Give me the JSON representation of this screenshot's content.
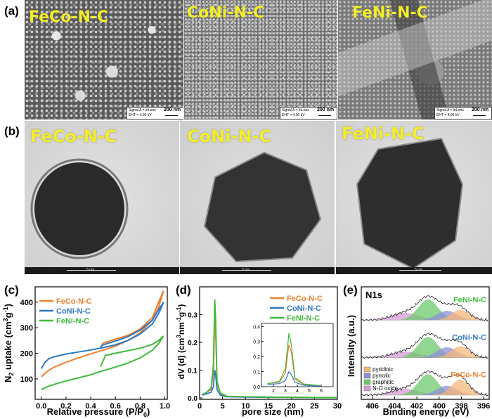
{
  "panels": {
    "a": "(a)",
    "b": "(b)",
    "c": "(c)",
    "d": "(d)",
    "e": "(e)"
  },
  "sem": [
    {
      "title": "FeCo-N-C",
      "scale": "200 nm",
      "info1": "Signal A = InLens",
      "info2": "EHT = 4.00 kV"
    },
    {
      "title": "CoNi-N-C",
      "scale": "200 nm",
      "info1": "Signal A = InLens",
      "info2": "EHT = 4.00 kV"
    },
    {
      "title": "FeNi-N-C",
      "scale": "200 nm",
      "info1": "Signal A = InLens",
      "info2": "EHT = 4.00 kV"
    }
  ],
  "tem": [
    {
      "title": "FeCo-N-C",
      "scale": "5 nm"
    },
    {
      "title": "CoNi-N-C",
      "scale": "5 nm"
    },
    {
      "title": "FeNi-N-C",
      "scale": "5 nm"
    }
  ],
  "colors": {
    "FeCo": "#f07f2e",
    "CoNi": "#2f78c4",
    "FeNi": "#3dbb3a",
    "label_yellow": "#f3ee2a"
  },
  "chart_data": [
    {
      "type": "line",
      "panel": "c",
      "xlabel": "Relative pressure (P/P0)",
      "ylabel": "N2 uptake (cm3g-1)",
      "xlim": [
        -0.05,
        1.02
      ],
      "ylim": [
        20,
        460
      ],
      "xticks": [
        "0.0",
        "0.2",
        "0.4",
        "0.6",
        "0.8",
        "1.0"
      ],
      "yticks": [
        "100",
        "200",
        "300",
        "400"
      ],
      "legend_position": "top-left",
      "series": [
        {
          "name": "FeCo-N-C",
          "color": "#f07f2e",
          "ads": [
            [
              0.0,
              108
            ],
            [
              0.05,
              130
            ],
            [
              0.1,
              145
            ],
            [
              0.2,
              165
            ],
            [
              0.3,
              182
            ],
            [
              0.4,
              198
            ],
            [
              0.5,
              212
            ],
            [
              0.6,
              228
            ],
            [
              0.7,
              250
            ],
            [
              0.8,
              280
            ],
            [
              0.9,
              330
            ],
            [
              0.95,
              380
            ],
            [
              0.99,
              445
            ]
          ],
          "des": [
            [
              0.99,
              445
            ],
            [
              0.95,
              400
            ],
            [
              0.9,
              340
            ],
            [
              0.8,
              295
            ],
            [
              0.7,
              270
            ],
            [
              0.6,
              255
            ],
            [
              0.5,
              240
            ],
            [
              0.48,
              222
            ]
          ]
        },
        {
          "name": "CoNi-N-C",
          "color": "#2f78c4",
          "ads": [
            [
              0.0,
              140
            ],
            [
              0.03,
              165
            ],
            [
              0.06,
              178
            ],
            [
              0.1,
              186
            ],
            [
              0.2,
              197
            ],
            [
              0.3,
              205
            ],
            [
              0.4,
              213
            ],
            [
              0.5,
              222
            ],
            [
              0.6,
              233
            ],
            [
              0.7,
              250
            ],
            [
              0.8,
              275
            ],
            [
              0.9,
              315
            ],
            [
              0.95,
              355
            ],
            [
              0.99,
              400
            ]
          ],
          "des": [
            [
              0.99,
              400
            ],
            [
              0.95,
              370
            ],
            [
              0.9,
              330
            ],
            [
              0.8,
              290
            ],
            [
              0.7,
              265
            ],
            [
              0.6,
              248
            ],
            [
              0.5,
              233
            ],
            [
              0.48,
              224
            ]
          ]
        },
        {
          "name": "FeNi-N-C",
          "color": "#3dbb3a",
          "ads": [
            [
              0.0,
              58
            ],
            [
              0.05,
              70
            ],
            [
              0.1,
              78
            ],
            [
              0.2,
              92
            ],
            [
              0.3,
              104
            ],
            [
              0.4,
              116
            ],
            [
              0.5,
              132
            ],
            [
              0.6,
              146
            ],
            [
              0.7,
              162
            ],
            [
              0.8,
              182
            ],
            [
              0.9,
              212
            ],
            [
              0.95,
              238
            ],
            [
              0.99,
              268
            ]
          ],
          "des": [
            [
              0.99,
              268
            ],
            [
              0.95,
              250
            ],
            [
              0.9,
              235
            ],
            [
              0.8,
              220
            ],
            [
              0.7,
              210
            ],
            [
              0.6,
              200
            ],
            [
              0.52,
              192
            ],
            [
              0.48,
              148
            ]
          ]
        }
      ]
    },
    {
      "type": "line",
      "panel": "d",
      "xlabel": "pore size (nm)",
      "ylabel": "dV (d) (cm3nm-1g-1)",
      "xlim": [
        0,
        30
      ],
      "ylim": [
        -0.005,
        0.4
      ],
      "xticks": [
        "0",
        "5",
        "10",
        "15",
        "20",
        "25",
        "30"
      ],
      "yticks": [
        "0.0",
        "0.1",
        "0.2",
        "0.3"
      ],
      "legend_position": "top-right",
      "series": [
        {
          "name": "FeCo-N-C",
          "color": "#f07f2e",
          "points": [
            [
              0.5,
              0.01
            ],
            [
              1.5,
              0.02
            ],
            [
              2.5,
              0.03
            ],
            [
              3,
              0.09
            ],
            [
              3.3,
              0.28
            ],
            [
              3.5,
              0.23
            ],
            [
              3.8,
              0.05
            ],
            [
              4.5,
              0.015
            ],
            [
              6,
              0.005
            ],
            [
              10,
              0.004
            ],
            [
              15,
              0.003
            ],
            [
              20,
              0.002
            ],
            [
              30,
              0.001
            ]
          ]
        },
        {
          "name": "CoNi-N-C",
          "color": "#2f78c4",
          "points": [
            [
              0.5,
              0.01
            ],
            [
              1.5,
              0.015
            ],
            [
              2.5,
              0.02
            ],
            [
              3,
              0.04
            ],
            [
              3.3,
              0.1
            ],
            [
              3.5,
              0.08
            ],
            [
              3.8,
              0.03
            ],
            [
              4.5,
              0.01
            ],
            [
              6,
              0.004
            ],
            [
              10,
              0.003
            ],
            [
              15,
              0.002
            ],
            [
              20,
              0.002
            ],
            [
              30,
              0.001
            ]
          ]
        },
        {
          "name": "FeNi-N-C",
          "color": "#3dbb3a",
          "points": [
            [
              0.5,
              0.012
            ],
            [
              1.5,
              0.02
            ],
            [
              2.5,
              0.035
            ],
            [
              3,
              0.12
            ],
            [
              3.3,
              0.355
            ],
            [
              3.5,
              0.28
            ],
            [
              3.8,
              0.06
            ],
            [
              4.5,
              0.018
            ],
            [
              6,
              0.006
            ],
            [
              10,
              0.004
            ],
            [
              15,
              0.003
            ],
            [
              20,
              0.002
            ],
            [
              30,
              0.001
            ]
          ]
        }
      ],
      "inset": {
        "xticks": [
          "2",
          "3",
          "4",
          "5",
          "6"
        ],
        "yticks": [
          "0.0",
          "0.1",
          "0.2",
          "0.3",
          "0.4"
        ],
        "xlim": [
          1,
          7
        ],
        "ylim": [
          0,
          0.42
        ]
      }
    },
    {
      "type": "line",
      "panel": "e",
      "title": "N1s",
      "xlabel": "Binding energy (eV)",
      "ylabel": "Intensity (a.u.)",
      "xlim": [
        407,
        395.5
      ],
      "xticks": [
        "406",
        "404",
        "402",
        "400",
        "398",
        "396"
      ],
      "components": [
        {
          "name": "pyridinic",
          "color": "#f6b77a"
        },
        {
          "name": "pyrrolic",
          "color": "#8f8fd6"
        },
        {
          "name": "graphitic",
          "color": "#6cc86c"
        },
        {
          "name": "N-O oxide",
          "color": "#d69ad6"
        }
      ],
      "spectra": [
        {
          "name": "FeNi-N-C",
          "label_color": "#3dbb3a",
          "peaks": [
            {
              "c": 403,
              "h": 0.35,
              "w": 1.2
            },
            {
              "c": 401,
              "h": 1.0,
              "w": 0.9
            },
            {
              "c": 399.3,
              "h": 0.45,
              "w": 0.9
            },
            {
              "c": 398.1,
              "h": 0.5,
              "w": 0.8
            }
          ]
        },
        {
          "name": "CoNi-N-C",
          "label_color": "#2f78c4",
          "peaks": [
            {
              "c": 403,
              "h": 0.3,
              "w": 1.2
            },
            {
              "c": 401,
              "h": 1.0,
              "w": 0.9
            },
            {
              "c": 399.3,
              "h": 0.5,
              "w": 0.9
            },
            {
              "c": 398.1,
              "h": 0.55,
              "w": 0.8
            }
          ]
        },
        {
          "name": "FeCo-N-C",
          "label_color": "#f07f2e",
          "peaks": [
            {
              "c": 403,
              "h": 0.3,
              "w": 1.2
            },
            {
              "c": 401,
              "h": 1.0,
              "w": 0.9
            },
            {
              "c": 399.3,
              "h": 0.45,
              "w": 0.9
            },
            {
              "c": 398.1,
              "h": 0.75,
              "w": 0.8
            }
          ]
        }
      ]
    }
  ]
}
